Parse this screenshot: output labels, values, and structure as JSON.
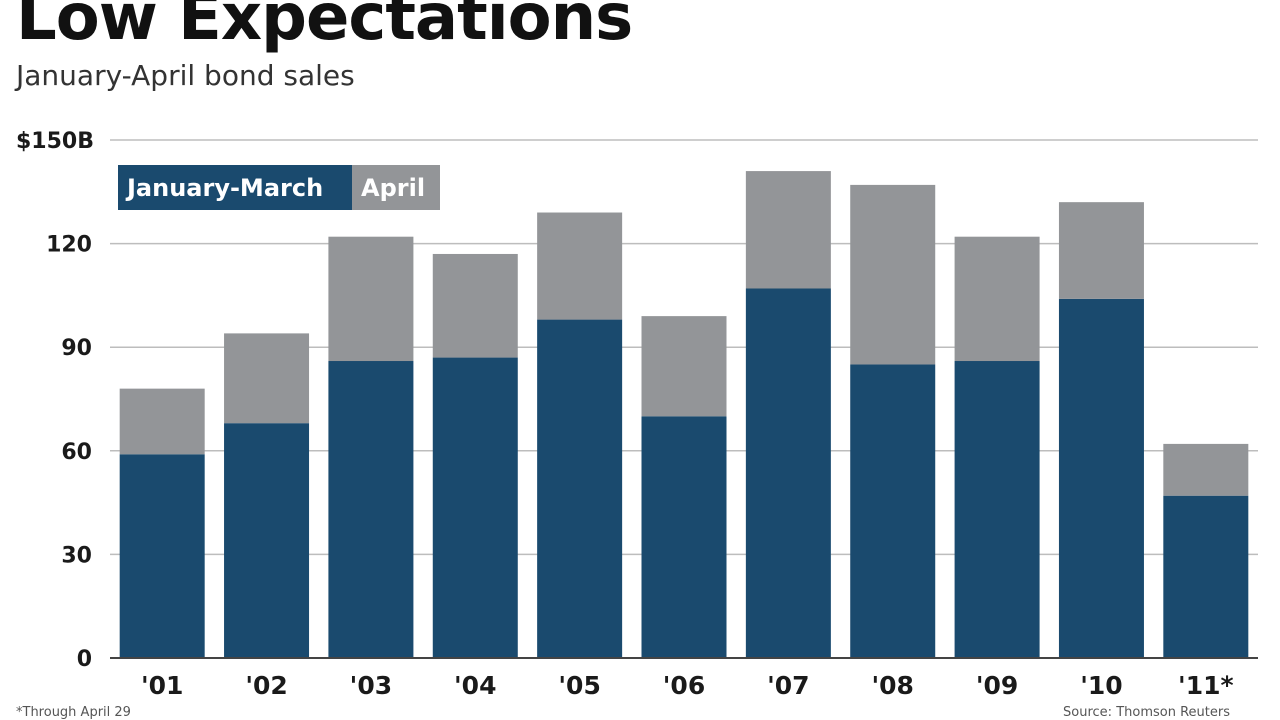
{
  "chart_data": {
    "type": "bar",
    "stacked": true,
    "title": "Low Expectations",
    "subtitle": "January-April bond sales",
    "categories": [
      "'01",
      "'02",
      "'03",
      "'04",
      "'05",
      "'06",
      "'07",
      "'08",
      "'09",
      "'10",
      "'11*"
    ],
    "series": [
      {
        "name": "January-March",
        "values": [
          59,
          68,
          86,
          87,
          98,
          70,
          107,
          85,
          86,
          104,
          47
        ],
        "color": "#1a4a6e"
      },
      {
        "name": "April",
        "values": [
          19,
          26,
          36,
          30,
          31,
          29,
          34,
          52,
          36,
          28,
          15
        ],
        "color": "#939598"
      }
    ],
    "ylim": [
      0,
      150
    ],
    "yticks": [
      0,
      30,
      60,
      90,
      120,
      150
    ],
    "ytick_labels": [
      "0",
      "30",
      "60",
      "90",
      "120",
      "$150B"
    ],
    "grid": true,
    "legend": "top-left",
    "footnote": "*Through April 29",
    "source": "Source: Thomson Reuters"
  }
}
